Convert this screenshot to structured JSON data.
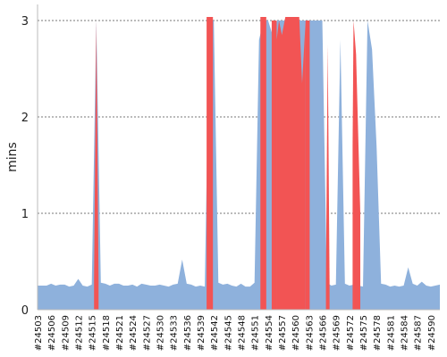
{
  "chart_data": {
    "type": "area",
    "ylabel": "mins",
    "xlabel": "",
    "title": "",
    "ylim": [
      0,
      3.0
    ],
    "yticks": [
      0,
      1,
      2,
      3
    ],
    "grid": true,
    "legend": "none",
    "colors": {
      "base": "#8eb1dc",
      "spike": "#f25454"
    },
    "x_tick_labels": [
      "#24503",
      "#24506",
      "#24509",
      "#24512",
      "#24515",
      "#24518",
      "#24521",
      "#24524",
      "#24527",
      "#24530",
      "#24533",
      "#24536",
      "#24539",
      "#24542",
      "#24545",
      "#24548",
      "#24551",
      "#24554",
      "#24557",
      "#24560",
      "#24563",
      "#24566",
      "#24569",
      "#24572",
      "#24575",
      "#24578",
      "#24581",
      "#24584",
      "#24587",
      "#24590"
    ],
    "x_start": 24503,
    "series": [
      {
        "values": [
          0.25,
          0.25,
          0.25,
          0.27,
          0.25,
          0.26,
          0.26,
          0.24,
          0.25,
          0.32,
          0.25,
          0.24,
          0.26,
          3.0,
          0.28,
          0.27,
          0.25,
          0.27,
          0.27,
          0.25,
          0.25,
          0.26,
          0.24,
          0.27,
          0.26,
          0.25,
          0.25,
          0.26,
          0.25,
          0.24,
          0.26,
          0.27,
          0.52,
          0.27,
          0.26,
          0.24,
          0.25,
          0.24,
          3.0,
          3.0,
          0.28,
          0.26,
          0.27,
          0.25,
          0.24,
          0.27,
          0.24,
          0.24,
          0.28,
          2.8,
          3.0,
          3.0,
          2.85,
          3.0,
          3.0,
          3.0,
          3.0,
          3.0,
          3.0,
          3.0,
          3.0,
          3.0,
          3.0,
          3.0,
          0.28,
          0.25,
          0.26,
          2.8,
          0.27,
          0.25,
          0.26,
          0.25,
          0.24,
          3.0,
          2.7,
          1.7,
          0.27,
          0.26,
          0.24,
          0.25,
          0.24,
          0.25,
          0.44,
          0.27,
          0.25,
          0.29,
          0.25,
          0.24,
          0.25,
          0.26
        ]
      }
    ],
    "spikes": [
      {
        "from": 24515.5,
        "to": 24516.5,
        "top": 3.0
      },
      {
        "from": 24540.4,
        "to": 24541.8,
        "top": 3.05
      },
      {
        "from": 24552.3,
        "to": 24553.6,
        "top": 3.05
      },
      {
        "from": 24554.8,
        "to": 24555.9,
        "top": 3.0
      },
      {
        "from": 24555.9,
        "to": 24562.3,
        "top": 3.05
      },
      {
        "from": 24562.3,
        "to": 24563.2,
        "top": 3.0
      },
      {
        "from": 24566.8,
        "to": 24567.6,
        "top": 2.75
      },
      {
        "from": 24572.7,
        "to": 24574.4,
        "top": 3.0
      }
    ]
  }
}
